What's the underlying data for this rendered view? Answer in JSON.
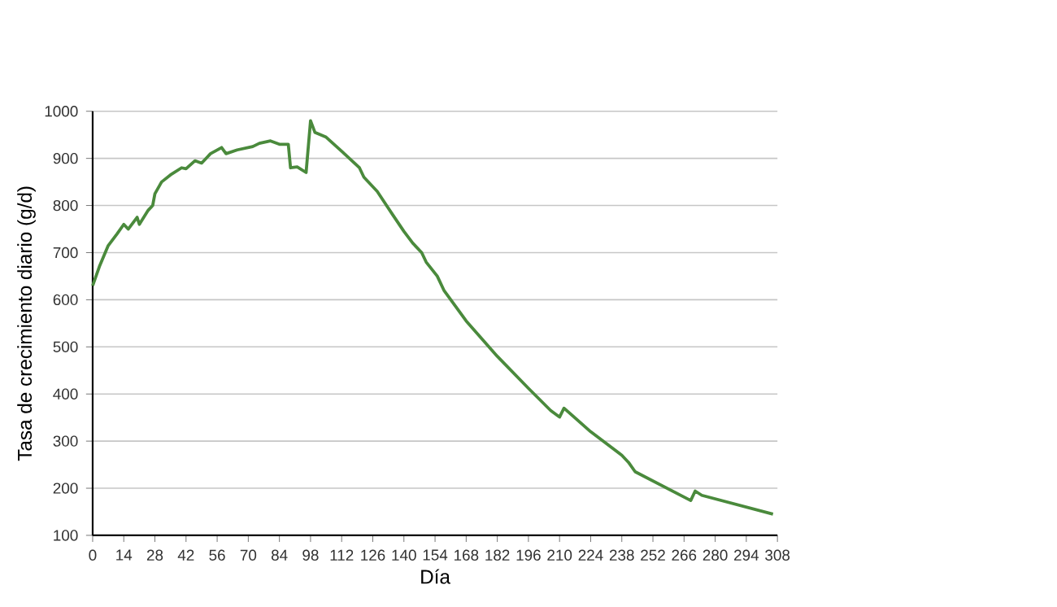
{
  "chart_data": {
    "type": "line",
    "xlabel": "Día",
    "ylabel": "Tasa de crecimiento diario (g/d)",
    "xlim": [
      0,
      308
    ],
    "ylim": [
      100,
      1000
    ],
    "xticks": [
      0,
      14,
      28,
      42,
      56,
      70,
      84,
      98,
      112,
      126,
      140,
      154,
      168,
      182,
      196,
      210,
      224,
      238,
      252,
      266,
      280,
      294,
      308
    ],
    "yticks": [
      100,
      200,
      300,
      400,
      500,
      600,
      700,
      800,
      900,
      1000
    ],
    "grid": "y",
    "marker": "none",
    "line_style": "solid",
    "series": [
      {
        "color": "#4a8a3c",
        "x": [
          0,
          3,
          7,
          11,
          14,
          16,
          20,
          21,
          25,
          27,
          28,
          31,
          35,
          40,
          42,
          46,
          49,
          53,
          58,
          60,
          65,
          72,
          75,
          80,
          84,
          88,
          89,
          92,
          96,
          98,
          100,
          105,
          112,
          120,
          122,
          128,
          135,
          140,
          144,
          148,
          150,
          155,
          158,
          168,
          182,
          196,
          206,
          210,
          212,
          224,
          238,
          241,
          244,
          269,
          271,
          274,
          306
        ],
        "values": [
          630,
          670,
          715,
          740,
          760,
          750,
          775,
          760,
          790,
          800,
          825,
          850,
          865,
          880,
          878,
          895,
          890,
          910,
          923,
          910,
          918,
          925,
          932,
          937,
          930,
          930,
          880,
          882,
          870,
          980,
          955,
          945,
          915,
          880,
          860,
          830,
          780,
          745,
          720,
          700,
          680,
          650,
          620,
          555,
          480,
          412,
          365,
          351,
          370,
          320,
          270,
          255,
          235,
          174,
          194,
          185,
          145
        ]
      }
    ]
  }
}
